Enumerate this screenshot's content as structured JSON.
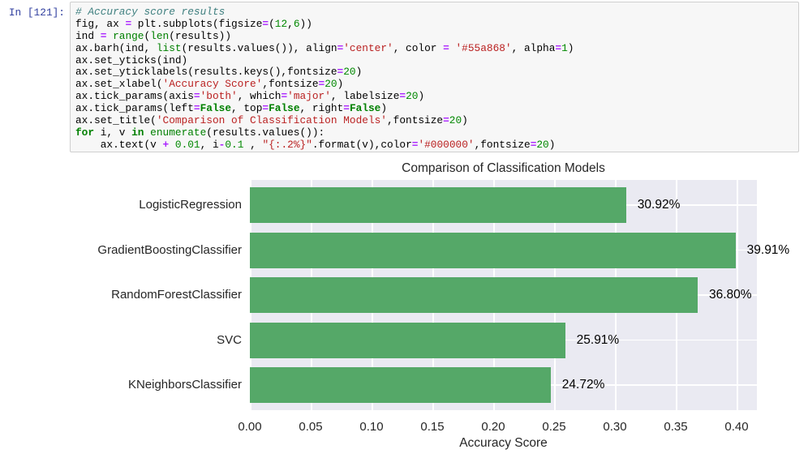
{
  "notebook": {
    "prompt": "In [121]:",
    "code_lines": [
      [
        {
          "s": "# Accuracy score results",
          "c": "com"
        }
      ],
      [
        {
          "s": "fig, ax ",
          "c": ""
        },
        {
          "s": "=",
          "c": "op"
        },
        {
          "s": " plt.subplots(figsize",
          "c": ""
        },
        {
          "s": "=",
          "c": "op"
        },
        {
          "s": "(",
          "c": ""
        },
        {
          "s": "12",
          "c": "num"
        },
        {
          "s": ",",
          "c": ""
        },
        {
          "s": "6",
          "c": "num"
        },
        {
          "s": "))",
          "c": ""
        }
      ],
      [
        {
          "s": "ind ",
          "c": ""
        },
        {
          "s": "=",
          "c": "op"
        },
        {
          "s": " ",
          "c": ""
        },
        {
          "s": "range",
          "c": "bi"
        },
        {
          "s": "(",
          "c": ""
        },
        {
          "s": "len",
          "c": "bi"
        },
        {
          "s": "(results))",
          "c": ""
        }
      ],
      [
        {
          "s": "ax.barh(ind, ",
          "c": ""
        },
        {
          "s": "list",
          "c": "bi"
        },
        {
          "s": "(results.values()), align",
          "c": ""
        },
        {
          "s": "=",
          "c": "op"
        },
        {
          "s": "'center'",
          "c": "str"
        },
        {
          "s": ", color ",
          "c": ""
        },
        {
          "s": "=",
          "c": "op"
        },
        {
          "s": " ",
          "c": ""
        },
        {
          "s": "'#55a868'",
          "c": "str"
        },
        {
          "s": ", alpha",
          "c": ""
        },
        {
          "s": "=",
          "c": "op"
        },
        {
          "s": "1",
          "c": "num"
        },
        {
          "s": ")",
          "c": ""
        }
      ],
      [
        {
          "s": "ax.set_yticks(ind)",
          "c": ""
        }
      ],
      [
        {
          "s": "ax.set_yticklabels(results.keys(),fontsize",
          "c": ""
        },
        {
          "s": "=",
          "c": "op"
        },
        {
          "s": "20",
          "c": "num"
        },
        {
          "s": ")",
          "c": ""
        }
      ],
      [
        {
          "s": "ax.set_xlabel(",
          "c": ""
        },
        {
          "s": "'Accuracy Score'",
          "c": "str"
        },
        {
          "s": ",fontsize",
          "c": ""
        },
        {
          "s": "=",
          "c": "op"
        },
        {
          "s": "20",
          "c": "num"
        },
        {
          "s": ")",
          "c": ""
        }
      ],
      [
        {
          "s": "ax.tick_params(axis",
          "c": ""
        },
        {
          "s": "=",
          "c": "op"
        },
        {
          "s": "'both'",
          "c": "str"
        },
        {
          "s": ", which",
          "c": ""
        },
        {
          "s": "=",
          "c": "op"
        },
        {
          "s": "'major'",
          "c": "str"
        },
        {
          "s": ", labelsize",
          "c": ""
        },
        {
          "s": "=",
          "c": "op"
        },
        {
          "s": "20",
          "c": "num"
        },
        {
          "s": ")",
          "c": ""
        }
      ],
      [
        {
          "s": "ax.tick_params(left",
          "c": ""
        },
        {
          "s": "=",
          "c": "op"
        },
        {
          "s": "False",
          "c": "kw"
        },
        {
          "s": ", top",
          "c": ""
        },
        {
          "s": "=",
          "c": "op"
        },
        {
          "s": "False",
          "c": "kw"
        },
        {
          "s": ", right",
          "c": ""
        },
        {
          "s": "=",
          "c": "op"
        },
        {
          "s": "False",
          "c": "kw"
        },
        {
          "s": ")",
          "c": ""
        }
      ],
      [
        {
          "s": "ax.set_title(",
          "c": ""
        },
        {
          "s": "'Comparison of Classification Models'",
          "c": "str"
        },
        {
          "s": ",fontsize",
          "c": ""
        },
        {
          "s": "=",
          "c": "op"
        },
        {
          "s": "20",
          "c": "num"
        },
        {
          "s": ")",
          "c": ""
        }
      ],
      [
        {
          "s": "for",
          "c": "kw"
        },
        {
          "s": " i, v ",
          "c": ""
        },
        {
          "s": "in",
          "c": "kw"
        },
        {
          "s": " ",
          "c": ""
        },
        {
          "s": "enumerate",
          "c": "bi"
        },
        {
          "s": "(results.values()):",
          "c": ""
        }
      ],
      [
        {
          "s": "    ax.text(v ",
          "c": ""
        },
        {
          "s": "+",
          "c": "op"
        },
        {
          "s": " ",
          "c": ""
        },
        {
          "s": "0.01",
          "c": "num"
        },
        {
          "s": ", i",
          "c": ""
        },
        {
          "s": "-",
          "c": "op"
        },
        {
          "s": "0.1",
          "c": "num"
        },
        {
          "s": " , ",
          "c": ""
        },
        {
          "s": "\"{:.2%}\"",
          "c": "str"
        },
        {
          "s": ".format(v),color",
          "c": ""
        },
        {
          "s": "=",
          "c": "op"
        },
        {
          "s": "'#000000'",
          "c": "str"
        },
        {
          "s": ",fontsize",
          "c": ""
        },
        {
          "s": "=",
          "c": "op"
        },
        {
          "s": "20",
          "c": "num"
        },
        {
          "s": ")",
          "c": ""
        }
      ]
    ]
  },
  "chart_data": {
    "type": "bar",
    "orientation": "horizontal",
    "title": "Comparison of Classification Models",
    "xlabel": "Accuracy Score",
    "categories": [
      "LogisticRegression",
      "GradientBoostingClassifier",
      "RandomForestClassifier",
      "SVC",
      "KNeighborsClassifier"
    ],
    "values": [
      0.3092,
      0.3991,
      0.368,
      0.2591,
      0.2472
    ],
    "value_labels": [
      "30.92%",
      "39.91%",
      "36.80%",
      "25.91%",
      "24.72%"
    ],
    "xticks": [
      0.0,
      0.05,
      0.1,
      0.15,
      0.2,
      0.25,
      0.3,
      0.35,
      0.4
    ],
    "xtick_labels": [
      "0.00",
      "0.05",
      "0.10",
      "0.15",
      "0.20",
      "0.25",
      "0.30",
      "0.35",
      "0.40"
    ],
    "xlim": [
      0,
      0.4167
    ],
    "grid": true,
    "legend": false,
    "bar_color": "#55a868",
    "plot_bg": "#eaeaf2",
    "grid_color": "#ffffff",
    "text_color": "#262626",
    "value_label_color": "#000000"
  }
}
